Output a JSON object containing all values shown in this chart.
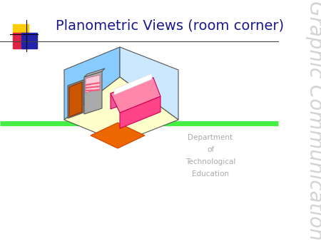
{
  "title": "Planometric Views (room corner)",
  "title_color": "#1a1a8c",
  "title_fontsize": 14,
  "bg_color": "#ffffff",
  "subtitle_lines": [
    "Department",
    "of",
    "Technological",
    "Education"
  ],
  "subtitle_color": "#aaaaaa",
  "watermark_text": "Graphic Communication",
  "watermark_color": "#cccccc",
  "green_line_color": "#44ee44",
  "logo_colors": {
    "yellow": "#ffcc00",
    "red": "#dd2244",
    "blue": "#2222aa"
  },
  "room": {
    "floor_color": "#ffffcc",
    "left_wall_color": "#88ccff",
    "right_wall_color": "#cce8ff",
    "door_color": "#cc5500",
    "door_frame_color": "#888888",
    "cabinet_color": "#aaaaaa",
    "shelf_color": "#ffaaaa",
    "bed_base_color": "#ff4488",
    "bed_top_color": "#ff88aa",
    "rug_color": "#ee6600",
    "window_color": "#ffccdd",
    "edge_color": "#555555"
  }
}
